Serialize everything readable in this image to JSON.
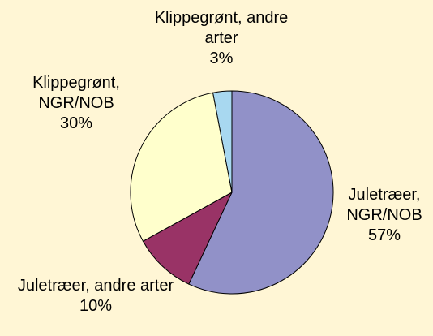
{
  "chart_data": {
    "type": "pie",
    "categories": [
      "Juletræer, NGR/NOB",
      "Juletræer, andre arter",
      "Klippegrønt, NGR/NOB",
      "Klippegrønt, andre arter"
    ],
    "values": [
      57,
      10,
      30,
      3
    ],
    "value_labels": [
      "57%",
      "10%",
      "30%",
      "3%"
    ],
    "colors": [
      "#9191c8",
      "#993366",
      "#ffffcc",
      "#a8d8f0"
    ]
  }
}
